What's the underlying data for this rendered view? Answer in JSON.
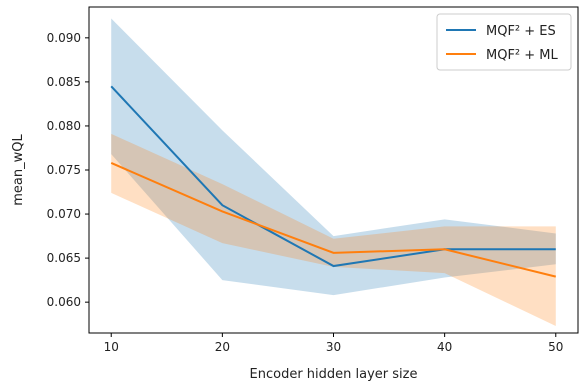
{
  "chart_data": {
    "type": "line",
    "xlabel": "Encoder hidden layer size",
    "ylabel": "mean_wQL",
    "x": [
      10,
      20,
      30,
      40,
      50
    ],
    "xlim": [
      8,
      52
    ],
    "ylim": [
      0.0565,
      0.0935
    ],
    "xticks": [
      10,
      20,
      30,
      40,
      50
    ],
    "yticks": [
      0.06,
      0.065,
      0.07,
      0.075,
      0.08,
      0.085,
      0.09
    ],
    "ytick_labels": [
      "0.060",
      "0.065",
      "0.070",
      "0.075",
      "0.080",
      "0.085",
      "0.090"
    ],
    "grid": false,
    "legend_position": "top-right",
    "series": [
      {
        "name": "MQF² + ES",
        "color": "#1f77b4",
        "values": [
          0.0845,
          0.071,
          0.0641,
          0.066,
          0.066
        ],
        "lower": [
          0.0768,
          0.0625,
          0.0608,
          0.0628,
          0.0643
        ],
        "upper": [
          0.0922,
          0.0795,
          0.0675,
          0.0694,
          0.0678
        ]
      },
      {
        "name": "MQF² + ML",
        "color": "#ff7f0e",
        "values": [
          0.0758,
          0.0703,
          0.0656,
          0.066,
          0.0629
        ],
        "lower": [
          0.0724,
          0.0667,
          0.064,
          0.0633,
          0.0573
        ],
        "upper": [
          0.0791,
          0.0734,
          0.0672,
          0.0686,
          0.0686
        ]
      }
    ]
  }
}
